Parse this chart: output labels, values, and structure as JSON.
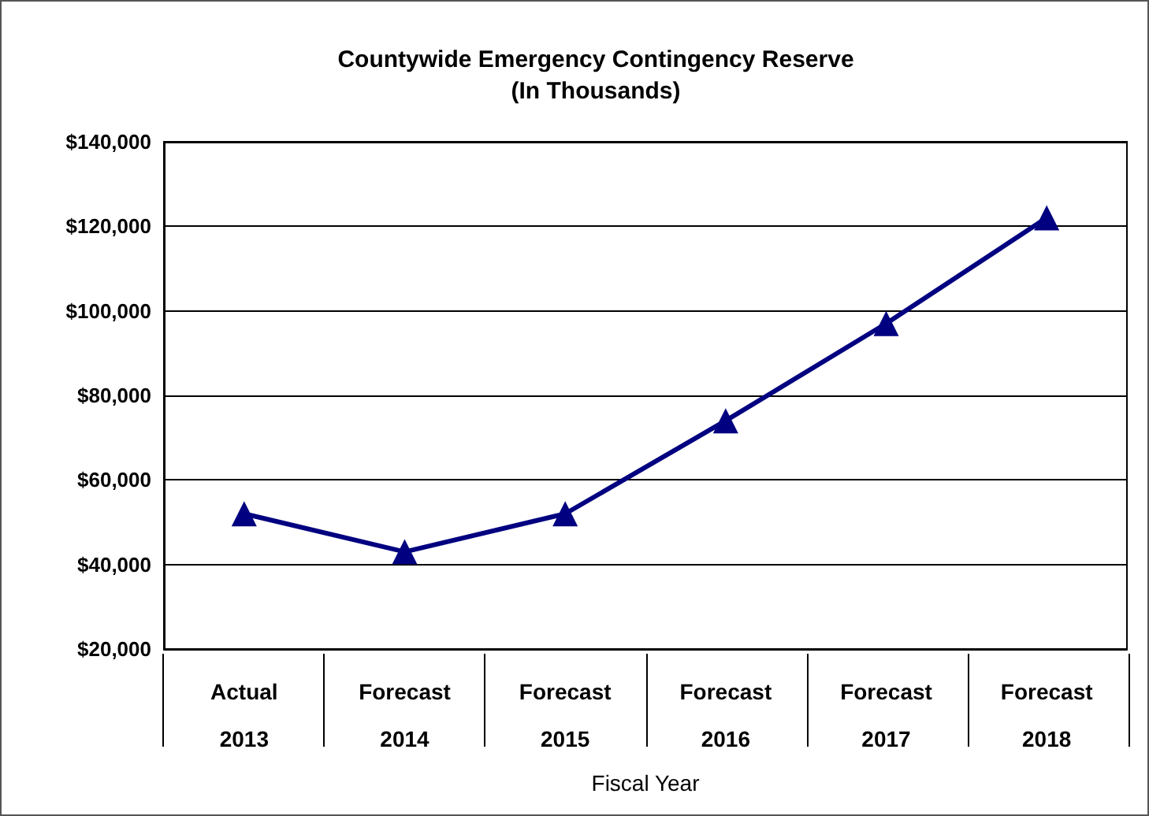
{
  "chart_data": {
    "type": "line",
    "title": "Countywide Emergency Contingency Reserve\n(In Thousands)",
    "xlabel": "Fiscal Year",
    "categories": [
      "Actual\n2013",
      "Forecast\n2014",
      "Forecast\n2015",
      "Forecast\n2016",
      "Forecast\n2017",
      "Forecast\n2018"
    ],
    "series": [
      {
        "color": "#000080",
        "values": [
          52000,
          43000,
          52000,
          74000,
          97000,
          122000
        ]
      }
    ],
    "ylim": [
      20000,
      140000
    ],
    "yticks": [
      {
        "value": 20000,
        "label": "$20,000"
      },
      {
        "value": 40000,
        "label": "$40,000"
      },
      {
        "value": 60000,
        "label": "$60,000"
      },
      {
        "value": 80000,
        "label": "$80,000"
      },
      {
        "value": 100000,
        "label": "$100,000"
      },
      {
        "value": 120000,
        "label": "$120,000"
      },
      {
        "value": 140000,
        "label": "$140,000"
      }
    ],
    "grid": "y",
    "marker": "triangle",
    "line_style": "solid"
  }
}
